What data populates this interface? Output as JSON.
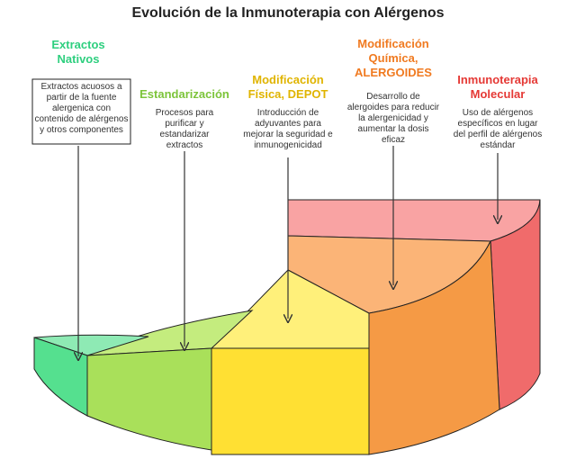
{
  "title": "Evolución de la Inmunoterapia con Alérgenos",
  "stages": [
    {
      "title": "Extractos Nativos",
      "description": "Extractos acuosos a partir de la fuente alergenica con contenido de alérgenos y otros componentes"
    },
    {
      "title": "Estandarización",
      "description": "Procesos para purificar y estandarizar extractos"
    },
    {
      "title": "Modificación Física, DEPOT",
      "description": "Introducción de adyuvantes para mejorar la seguridad e inmunogenicidad"
    },
    {
      "title": "Modificación Química, ALERGOIDES",
      "description": "Desarrollo de alergoides para reducir la alergenicidad y aumentar la dosis eficaz"
    },
    {
      "title": "Inmunoterapia Molecular",
      "description": "Uso de alérgenos específicos en lugar del perfil de alérgenos estándar"
    }
  ]
}
